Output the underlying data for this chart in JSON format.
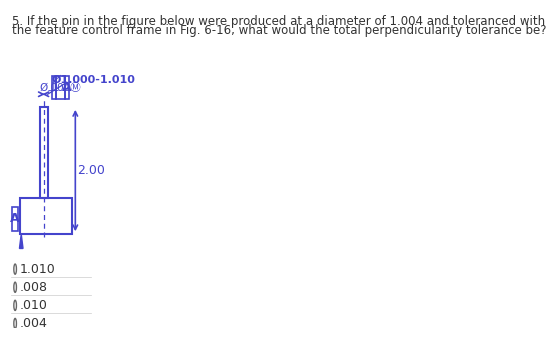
{
  "question_text_line1": "5. If the pin in the figure below were produced at a diameter of 1.004 and toleranced with",
  "question_text_line2": "the feature control frame in Fig. 6-16, what would the total perpendicularity tolerance be?",
  "question_fontsize": 8.5,
  "dim_label": "Ø1.000-1.010",
  "height_label": "2.00",
  "datum_label": "A",
  "answer_options": [
    "1.010",
    ".008",
    ".010",
    ".004"
  ],
  "background_color": "#ffffff",
  "line_color": "#4444cc",
  "text_color": "#4444cc",
  "question_color": "#333333",
  "option_color": "#333333",
  "sep_color": "#cccccc"
}
